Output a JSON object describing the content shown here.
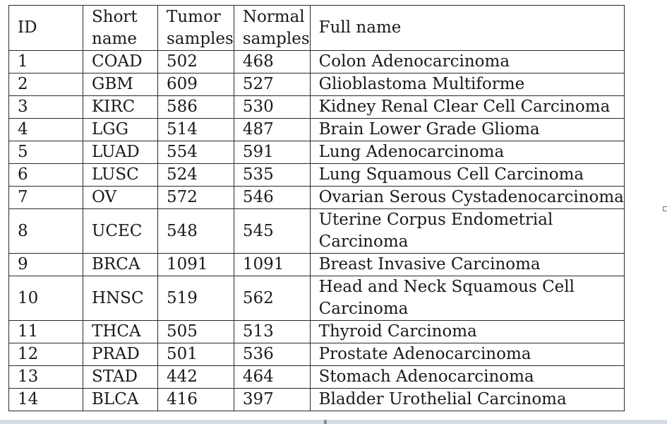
{
  "table": {
    "headers": {
      "id": "ID",
      "short_name": "Short name",
      "tumor_samples": "Tumor samples",
      "normal_samples": "Normal samples",
      "full_name": "Full name"
    },
    "rows": [
      {
        "id": "1",
        "short": "COAD",
        "tumor": "502",
        "normal": "468",
        "full": "Colon Adenocarcinoma"
      },
      {
        "id": "2",
        "short": "GBM",
        "tumor": "609",
        "normal": "527",
        "full": "Glioblastoma Multiforme"
      },
      {
        "id": "3",
        "short": "KIRC",
        "tumor": "586",
        "normal": "530",
        "full": "Kidney Renal Clear Cell Carcinoma"
      },
      {
        "id": "4",
        "short": "LGG",
        "tumor": "514",
        "normal": "487",
        "full": "Brain Lower Grade Glioma"
      },
      {
        "id": "5",
        "short": "LUAD",
        "tumor": "554",
        "normal": "591",
        "full": "Lung Adenocarcinoma"
      },
      {
        "id": "6",
        "short": "LUSC",
        "tumor": "524",
        "normal": "535",
        "full": "Lung Squamous Cell Carcinoma"
      },
      {
        "id": "7",
        "short": "OV",
        "tumor": "572",
        "normal": "546",
        "full": "Ovarian Serous Cystadenocarcinoma"
      },
      {
        "id": "8",
        "short": "UCEC",
        "tumor": "548",
        "normal": "545",
        "full": "Uterine Corpus Endometrial Carcinoma"
      },
      {
        "id": "9",
        "short": "BRCA",
        "tumor": "1091",
        "normal": "1091",
        "full": "Breast Invasive Carcinoma"
      },
      {
        "id": "10",
        "short": "HNSC",
        "tumor": "519",
        "normal": "562",
        "full": "Head and Neck Squamous Cell Carcinoma"
      },
      {
        "id": "11",
        "short": "THCA",
        "tumor": "505",
        "normal": "513",
        "full": "Thyroid Carcinoma"
      },
      {
        "id": "12",
        "short": "PRAD",
        "tumor": "501",
        "normal": "536",
        "full": "Prostate Adenocarcinoma"
      },
      {
        "id": "13",
        "short": "STAD",
        "tumor": "442",
        "normal": "464",
        "full": "Stomach Adenocarcinoma"
      },
      {
        "id": "14",
        "short": "BLCA",
        "tumor": "416",
        "normal": "397",
        "full": "Bladder Urothelial Carcinoma"
      }
    ]
  }
}
